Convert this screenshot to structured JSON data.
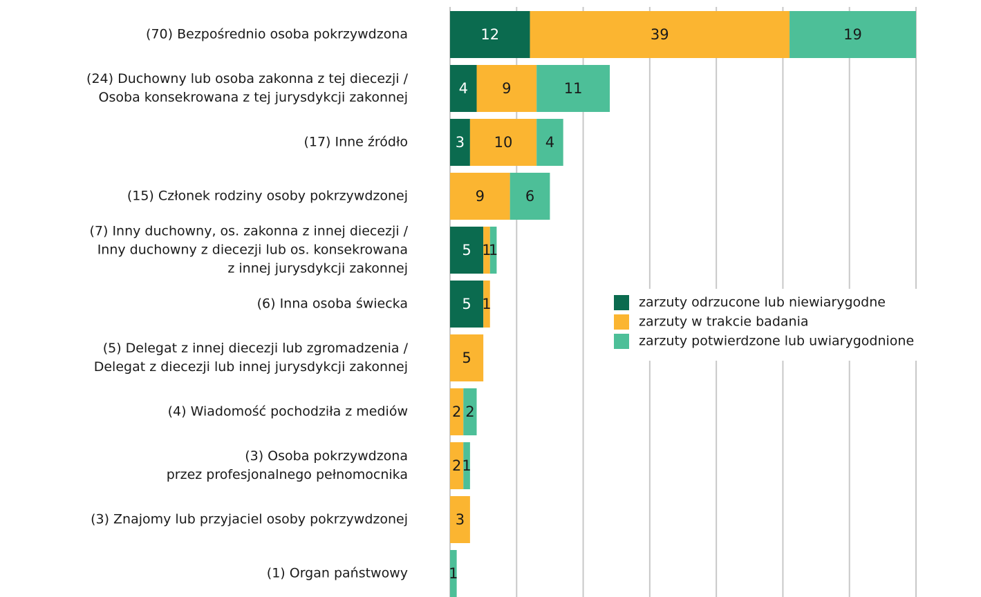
{
  "chart_data": {
    "type": "stacked-barh",
    "categories": [
      [
        "(70) Bezpośrednio osoba pokrzywdzona"
      ],
      [
        "(24) Duchowny lub osoba zakonna z tej diecezji /",
        "Osoba konsekrowana z tej jurysdykcji zakonnej"
      ],
      [
        "(17) Inne źródło"
      ],
      [
        "(15) Członek rodziny osoby pokrzywdzonej"
      ],
      [
        "(7) Inny duchowny, os. zakonna z innej diecezji /",
        "Inny duchowny z diecezji lub os. konsekrowana",
        "z innej jurysdykcji zakonnej"
      ],
      [
        "(6) Inna osoba świecka"
      ],
      [
        "(5) Delegat z innej diecezji lub zgromadzenia /",
        "Delegat z diecezji lub innej jurysdykcji zakonnej"
      ],
      [
        "(4) Wiadomość pochodziła z mediów"
      ],
      [
        "(3) Osoba pokrzywdzona",
        "przez profesjonalnego pełnomocnika"
      ],
      [
        "(3) Znajomy lub przyjaciel osoby pokrzywdzonej"
      ],
      [
        "(1) Organ państwowy"
      ]
    ],
    "series": [
      {
        "name": "zarzuty odrzucone lub niewiarygodne",
        "color": "#0b6b4f",
        "label_color": "#ffffff",
        "values": [
          12,
          4,
          3,
          null,
          5,
          5,
          null,
          null,
          null,
          null,
          null
        ]
      },
      {
        "name": "zarzuty w trakcie badania",
        "color": "#fbb531",
        "label_color": "#1a1a1a",
        "values": [
          39,
          9,
          10,
          9,
          1,
          1,
          5,
          2,
          2,
          3,
          null
        ]
      },
      {
        "name": "zarzuty potwierdzone lub uwiarygodnione",
        "color": "#4dbf98",
        "label_color": "#1a1a1a",
        "values": [
          19,
          11,
          4,
          6,
          1,
          null,
          null,
          2,
          1,
          null,
          1
        ]
      }
    ],
    "xlim": [
      0,
      70
    ],
    "xticks": [
      0,
      10,
      20,
      30,
      40,
      50,
      60,
      70
    ],
    "grid": true
  }
}
